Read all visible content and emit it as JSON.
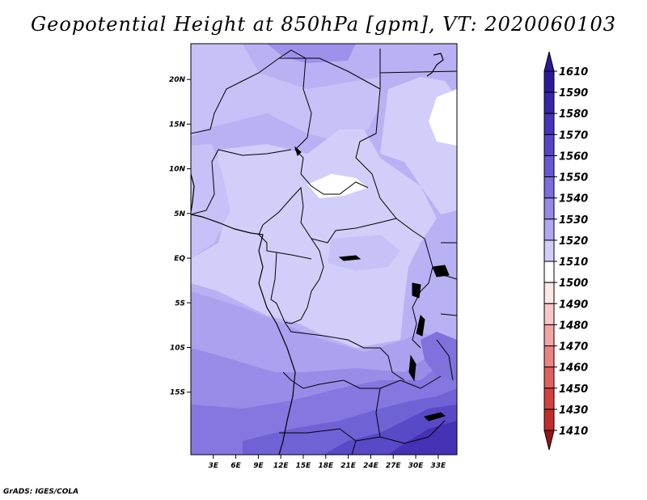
{
  "title": "Geopotential Height at 850hPa [gpm], VT: 2020060103",
  "footer": "GrADS: IGES/COLA",
  "map": {
    "lon_range": [
      0,
      35.5
    ],
    "lat_range": [
      -22,
      24
    ],
    "lat_ticks": [
      {
        "value": 20,
        "label": "20N"
      },
      {
        "value": 15,
        "label": "15N"
      },
      {
        "value": 10,
        "label": "10N"
      },
      {
        "value": 5,
        "label": "5N"
      },
      {
        "value": 0,
        "label": "EQ"
      },
      {
        "value": -5,
        "label": "5S"
      },
      {
        "value": -10,
        "label": "10S"
      },
      {
        "value": -15,
        "label": "15S"
      }
    ],
    "lon_ticks": [
      {
        "value": 3,
        "label": "3E"
      },
      {
        "value": 6,
        "label": "6E"
      },
      {
        "value": 9,
        "label": "9E"
      },
      {
        "value": 12,
        "label": "12E"
      },
      {
        "value": 15,
        "label": "15E"
      },
      {
        "value": 18,
        "label": "18E"
      },
      {
        "value": 21,
        "label": "21E"
      },
      {
        "value": 24,
        "label": "24E"
      },
      {
        "value": 27,
        "label": "27E"
      },
      {
        "value": 30,
        "label": "30E"
      },
      {
        "value": 33,
        "label": "33E"
      }
    ]
  },
  "colorbar": {
    "levels": [
      {
        "label": "1610",
        "color": "#2a1a99"
      },
      {
        "label": "1590",
        "color": "#3525a8"
      },
      {
        "label": "1580",
        "color": "#4434b8"
      },
      {
        "label": "1570",
        "color": "#5545c6"
      },
      {
        "label": "1560",
        "color": "#6658d2"
      },
      {
        "label": "1550",
        "color": "#7a6ddd"
      },
      {
        "label": "1540",
        "color": "#9488e8"
      },
      {
        "label": "1530",
        "color": "#b0a8f2"
      },
      {
        "label": "1520",
        "color": "#d2cefa"
      },
      {
        "label": "1510",
        "color": "#ffffff"
      },
      {
        "label": "1500",
        "color": "#fde7e7"
      },
      {
        "label": "1490",
        "color": "#f8c8c8"
      },
      {
        "label": "1480",
        "color": "#f2a5a5"
      },
      {
        "label": "1470",
        "color": "#ea8282"
      },
      {
        "label": "1460",
        "color": "#e06060"
      },
      {
        "label": "1450",
        "color": "#d44141"
      },
      {
        "label": "1430",
        "color": "#c22c2c"
      },
      {
        "label": "1410",
        "color": "#aa1e1e"
      }
    ],
    "bottom_color": "#951515"
  }
}
